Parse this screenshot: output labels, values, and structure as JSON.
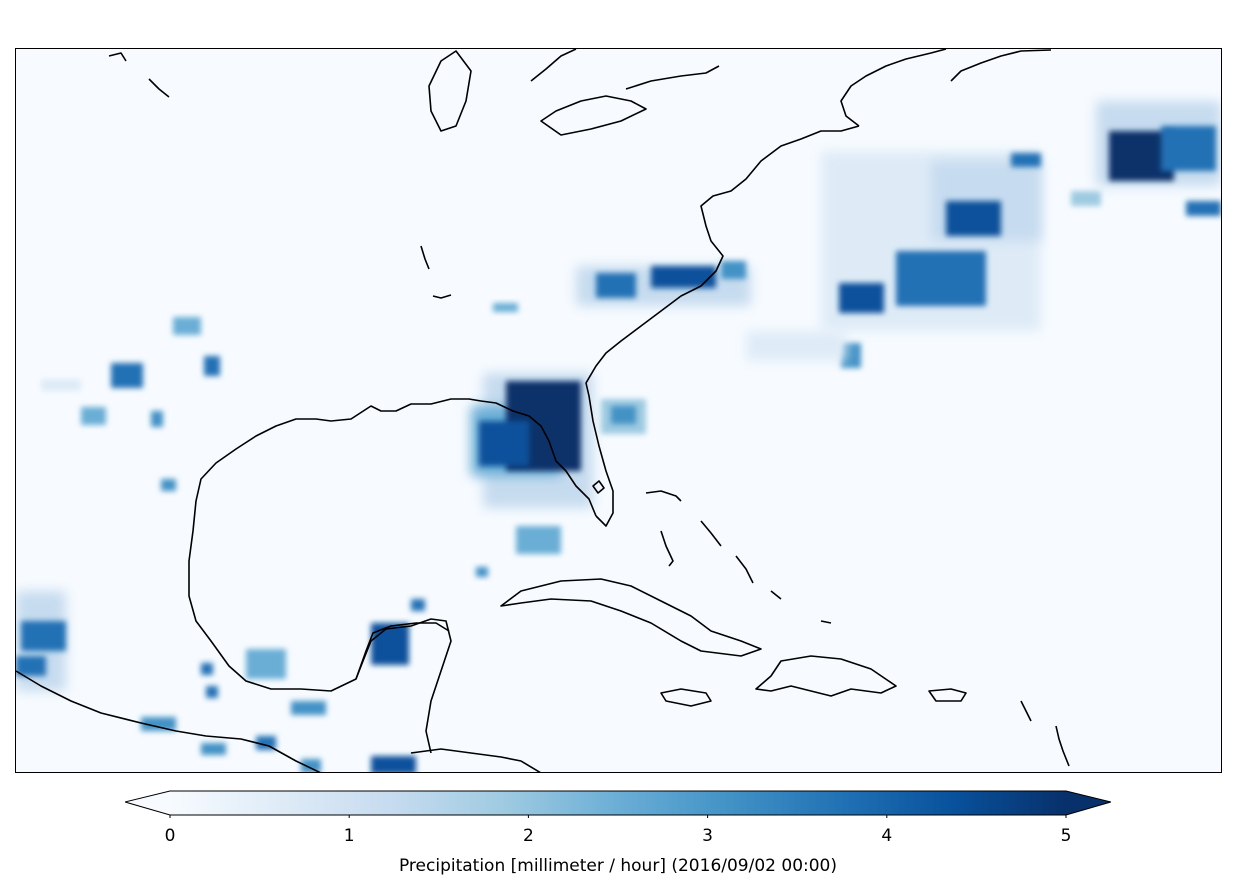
{
  "map": {
    "region": "Gulf of Mexico, Southeastern United States and Caribbean",
    "background_color": "#f7fbff",
    "coastline_color": "#000000"
  },
  "colorbar": {
    "colormap": "Blues",
    "color_low": "#f7fbff",
    "color_high": "#08306b",
    "min": 0,
    "max": 5,
    "extend": "both",
    "ticks": [
      "0",
      "1",
      "2",
      "3",
      "4",
      "5"
    ],
    "label": "Precipitation [millimeter / hour] (2016/09/02 00:00)"
  }
}
